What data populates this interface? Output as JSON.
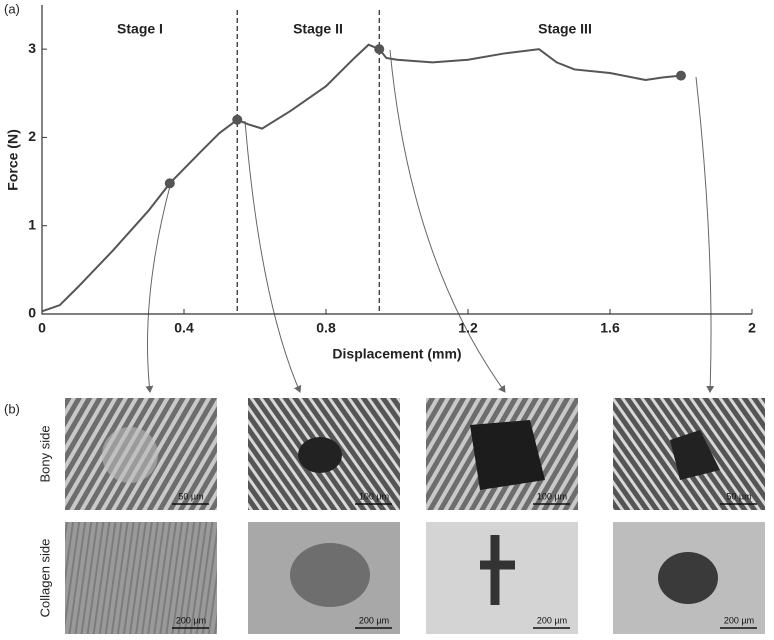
{
  "chart_data": {
    "type": "line",
    "xlabel": "Displacement (mm)",
    "ylabel": "Force (N)",
    "xlim": [
      0,
      2
    ],
    "ylim": [
      0,
      3.5
    ],
    "xticks": [
      0,
      0.4,
      0.8,
      1.2,
      1.6,
      2
    ],
    "yticks": [
      0,
      1,
      2,
      3
    ],
    "x": [
      0,
      0.05,
      0.1,
      0.2,
      0.3,
      0.36,
      0.45,
      0.5,
      0.55,
      0.58,
      0.62,
      0.7,
      0.8,
      0.88,
      0.92,
      0.95,
      0.97,
      1.0,
      1.1,
      1.2,
      1.3,
      1.4,
      1.45,
      1.5,
      1.6,
      1.7,
      1.75,
      1.8
    ],
    "series": [
      {
        "color": "#555555",
        "values": [
          0.03,
          0.1,
          0.3,
          0.72,
          1.17,
          1.48,
          1.85,
          2.05,
          2.2,
          2.15,
          2.1,
          2.3,
          2.58,
          2.9,
          3.05,
          3.0,
          2.9,
          2.88,
          2.85,
          2.88,
          2.95,
          3.0,
          2.85,
          2.77,
          2.73,
          2.65,
          2.68,
          2.7
        ]
      }
    ],
    "points": {
      "x": [
        0.36,
        0.55,
        0.95,
        1.8
      ],
      "y": [
        1.48,
        2.2,
        3.0,
        2.7
      ]
    },
    "stage_boundaries": [
      0.55,
      0.95
    ],
    "stages": [
      "Stage I",
      "Stage II",
      "Stage III"
    ]
  },
  "panel_labels": [
    "(a)",
    "(b)"
  ],
  "micrographs": {
    "rows": [
      "Bony side",
      "Collagen side"
    ],
    "scale_bars": [
      [
        "50 µm",
        "100 µm",
        "100 µm",
        "50 µm"
      ],
      [
        "200 µm",
        "200 µm",
        "200 µm",
        "200 µm"
      ]
    ]
  }
}
